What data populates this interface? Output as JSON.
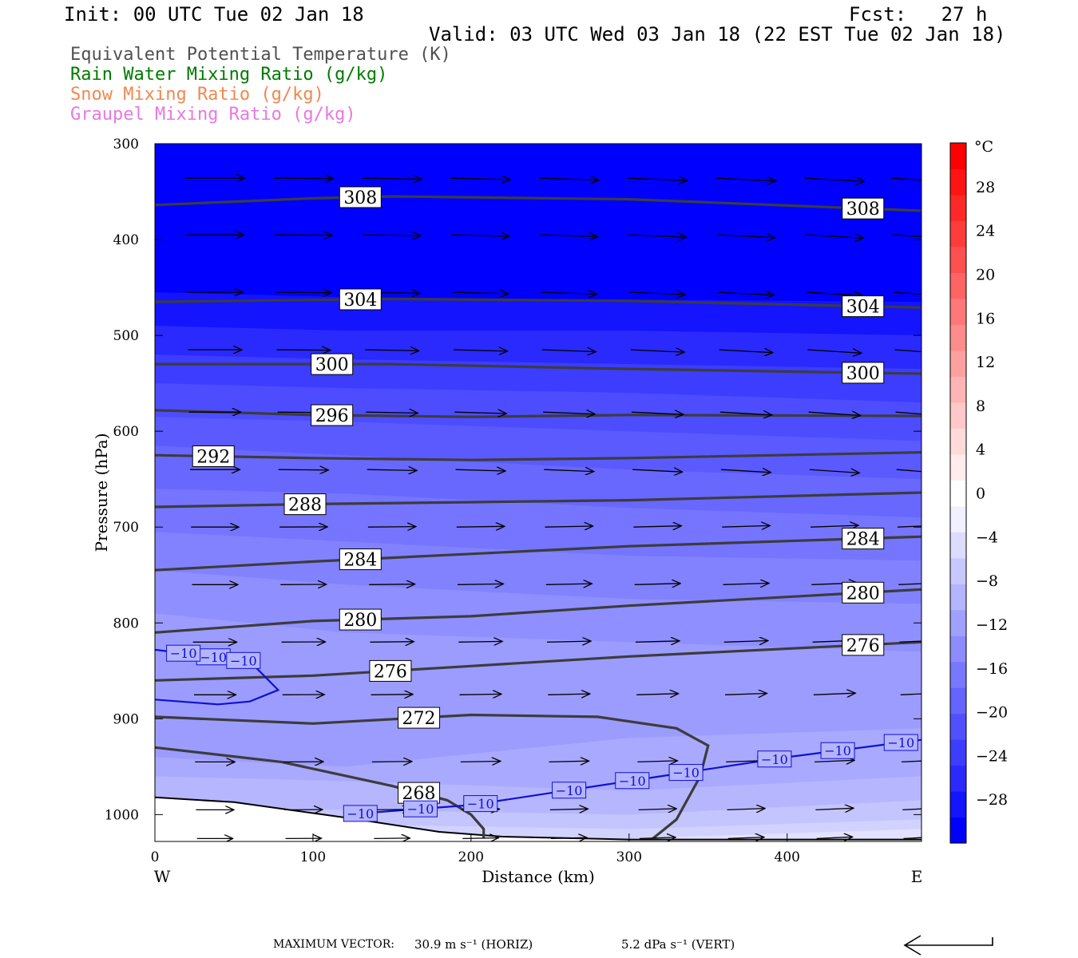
{
  "header": {
    "init": "Init: 00 UTC Tue 02 Jan 18",
    "fcst": "Fcst:   27 h",
    "valid": "Valid: 03 UTC Wed 03 Jan 18 (22 EST Tue 02 Jan 18)"
  },
  "legend": [
    {
      "text": "Equivalent Potential Temperature (K)",
      "color": "#505050"
    },
    {
      "text": "Rain Water Mixing Ratio (g/kg)",
      "color": "#007a00"
    },
    {
      "text": "Snow Mixing Ratio (g/kg)",
      "color": "#f08850"
    },
    {
      "text": "Graupel Mixing Ratio (g/kg)",
      "color": "#e878e0"
    }
  ],
  "footer": {
    "max_vector": "MAXIMUM VECTOR:",
    "horiz": "30.9 m s⁻¹ (HORIZ)",
    "vert": "5.2 dPa s⁻¹ (VERT)"
  },
  "chart_data": {
    "type": "cross-section",
    "xlabel": "Distance (km)",
    "ylabel": "Pressure (hPa)",
    "xlim": [
      0,
      485
    ],
    "ylim": [
      1028,
      300
    ],
    "x_ticks": [
      0,
      100,
      200,
      300,
      400
    ],
    "y_ticks": [
      300,
      400,
      500,
      600,
      700,
      800,
      900,
      1000
    ],
    "x_end_labels": {
      "left": "W",
      "right": "E"
    },
    "colorbar": {
      "unit": "°C",
      "labels": [
        "28",
        "24",
        "20",
        "16",
        "12",
        "8",
        "4",
        "0",
        "−4",
        "−8",
        "−12",
        "−16",
        "−20",
        "−24",
        "−28"
      ],
      "label_values": [
        28,
        24,
        20,
        16,
        12,
        8,
        4,
        0,
        -4,
        -8,
        -12,
        -16,
        -20,
        -24,
        -28
      ],
      "range": [
        -32,
        32
      ],
      "colors": [
        "#0000ff",
        "#1414ff",
        "#2a2aff",
        "#3d3dff",
        "#5050ff",
        "#6464ff",
        "#7878ff",
        "#8c8cff",
        "#a0a0ff",
        "#b4b4ff",
        "#c8c8ff",
        "#dcdcff",
        "#f0f0ff",
        "#ffffff",
        "#ffeded",
        "#ffdada",
        "#ffc8c8",
        "#ffb4b4",
        "#ffa0a0",
        "#ff8c8c",
        "#ff7878",
        "#ff6464",
        "#ff5050",
        "#ff3c3c",
        "#ff2828",
        "#ff1414",
        "#ff0000"
      ]
    },
    "temperature_bands": [
      {
        "temp": -32,
        "color": "#0000ff",
        "x": [
          0,
          485
        ],
        "p": [
          300,
          300
        ]
      },
      {
        "temp": -30,
        "color": "#1414ff",
        "x": [
          0,
          120,
          250,
          485
        ],
        "p": [
          455,
          460,
          462,
          465
        ]
      },
      {
        "temp": -28,
        "color": "#2a2aff",
        "x": [
          0,
          120,
          300,
          485
        ],
        "p": [
          490,
          495,
          495,
          500
        ]
      },
      {
        "temp": -26,
        "color": "#3d3dff",
        "x": [
          0,
          120,
          300,
          485
        ],
        "p": [
          520,
          525,
          530,
          535
        ]
      },
      {
        "temp": -24,
        "color": "#4d4dff",
        "x": [
          0,
          120,
          300,
          485
        ],
        "p": [
          550,
          555,
          560,
          570
        ]
      },
      {
        "temp": -22,
        "color": "#5a5aff",
        "x": [
          0,
          120,
          300,
          485
        ],
        "p": [
          585,
          590,
          600,
          610
        ]
      },
      {
        "temp": -20,
        "color": "#6868ff",
        "x": [
          0,
          120,
          300,
          485
        ],
        "p": [
          615,
          625,
          640,
          650
        ]
      },
      {
        "temp": -18,
        "color": "#7575ff",
        "x": [
          0,
          120,
          300,
          485
        ],
        "p": [
          660,
          665,
          680,
          690
        ]
      },
      {
        "temp": -16,
        "color": "#8282ff",
        "x": [
          0,
          120,
          300,
          485
        ],
        "p": [
          705,
          715,
          730,
          735
        ]
      },
      {
        "temp": -14,
        "color": "#8f8fff",
        "x": [
          0,
          120,
          300,
          485
        ],
        "p": [
          745,
          760,
          775,
          780
        ]
      },
      {
        "temp": -12,
        "color": "#9c9cff",
        "x": [
          0,
          120,
          300,
          485
        ],
        "p": [
          790,
          810,
          820,
          830
        ]
      },
      {
        "temp": -10,
        "color": "#a9a9ff",
        "x": [
          0,
          120,
          300,
          485
        ],
        "p": [
          940,
          950,
          920,
          910
        ]
      },
      {
        "temp": -8,
        "color": "#b6b6ff",
        "x": [
          0,
          120,
          300,
          485
        ],
        "p": [
          960,
          965,
          975,
          960
        ]
      },
      {
        "temp": -6,
        "color": "#c4c4ff",
        "x": [
          0,
          120,
          300,
          485
        ],
        "p": [
          990,
          995,
          1000,
          985
        ]
      },
      {
        "temp": -4,
        "color": "#d2d2ff",
        "x": [
          0,
          120,
          300,
          485
        ],
        "p": [
          1005,
          1010,
          1015,
          1005
        ]
      },
      {
        "temp": -2,
        "color": "#e2e2ff",
        "x": [
          150,
          300,
          485
        ],
        "p": [
          1025,
          1025,
          1015
        ]
      }
    ],
    "theta_e_contours": [
      {
        "label": "308",
        "x": [
          0,
          100,
          150,
          300,
          485
        ],
        "p": [
          364,
          357,
          355,
          358,
          370
        ],
        "label_x": [
          130,
          448
        ]
      },
      {
        "label": "304",
        "x": [
          0,
          150,
          300,
          485
        ],
        "p": [
          465,
          462,
          464,
          471
        ],
        "label_x": [
          130,
          448
        ]
      },
      {
        "label": "300",
        "x": [
          0,
          150,
          300,
          485
        ],
        "p": [
          530,
          530,
          535,
          540
        ],
        "label_x": [
          112,
          448
        ]
      },
      {
        "label": "296",
        "x": [
          0,
          100,
          200,
          300,
          485
        ],
        "p": [
          578,
          583,
          585,
          583,
          584
        ],
        "label_x": [
          112
        ]
      },
      {
        "label": "292",
        "x": [
          0,
          100,
          200,
          300,
          485
        ],
        "p": [
          625,
          628,
          630,
          628,
          622
        ],
        "label_x": [
          37
        ]
      },
      {
        "label": "288",
        "x": [
          0,
          100,
          200,
          300,
          485
        ],
        "p": [
          679,
          676,
          674,
          672,
          664
        ],
        "label_x": [
          95
        ]
      },
      {
        "label": "284",
        "x": [
          0,
          100,
          200,
          300,
          485
        ],
        "p": [
          745,
          736,
          728,
          720,
          710
        ],
        "label_x": [
          130,
          448
        ]
      },
      {
        "label": "280",
        "x": [
          0,
          100,
          200,
          300,
          485
        ],
        "p": [
          810,
          798,
          793,
          782,
          765
        ],
        "label_x": [
          130,
          448
        ]
      },
      {
        "label": "276",
        "x": [
          0,
          100,
          200,
          300,
          485
        ],
        "p": [
          860,
          855,
          845,
          835,
          820
        ],
        "label_x": [
          149,
          448
        ]
      },
      {
        "label": "272",
        "x": [
          0,
          100,
          200,
          280,
          330,
          350,
          345,
          330,
          315
        ],
        "p": [
          898,
          905,
          896,
          898,
          910,
          928,
          960,
          1005,
          1025
        ],
        "label_x": [
          167
        ]
      },
      {
        "label": "268",
        "x": [
          0,
          80,
          150,
          185,
          200,
          208,
          208
        ],
        "p": [
          930,
          945,
          970,
          985,
          1000,
          1015,
          1025
        ],
        "label_x": [
          167
        ]
      }
    ],
    "temperature_contours": [
      {
        "label": "−10",
        "x": [
          0,
          60,
          78,
          60,
          40,
          0
        ],
        "p": [
          828,
          840,
          870,
          882,
          885,
          880
        ],
        "label_x": [
          37,
          18,
          56
        ]
      },
      {
        "label": "−10",
        "x": [
          120,
          200,
          300,
          400,
          485
        ],
        "p": [
          1000,
          990,
          965,
          940,
          922
        ],
        "label_x": [
          130,
          168,
          206,
          262,
          302,
          336,
          392,
          432,
          472
        ]
      }
    ],
    "surface_pressure": {
      "x": [
        0,
        50,
        120,
        180,
        220,
        300,
        485
      ],
      "p": [
        982,
        987,
        1003,
        1018,
        1023,
        1026,
        1026
      ]
    },
    "wind_vector_grid": {
      "x": [
        38,
        94,
        150,
        206,
        262,
        318,
        374,
        430,
        485
      ],
      "p": [
        336,
        395,
        455,
        515,
        580,
        640,
        700,
        760,
        820,
        875,
        945,
        995,
        1025
      ]
    }
  }
}
